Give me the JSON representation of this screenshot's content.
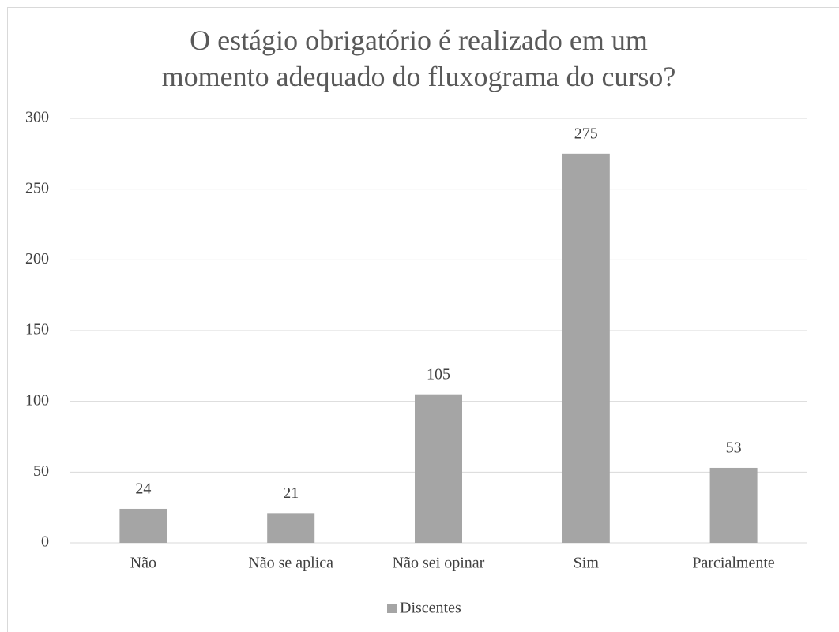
{
  "chart_data": {
    "type": "bar",
    "title": "O estágio obrigatório é realizado em um momento adequado do fluxograma do curso?",
    "categories": [
      "Não",
      "Não se aplica",
      "Não sei opinar",
      "Sim",
      "Parcialmente"
    ],
    "series": [
      {
        "name": "Discentes",
        "color": "#a5a5a5",
        "values": [
          24,
          21,
          105,
          275,
          53
        ]
      }
    ],
    "ylim": [
      0,
      300
    ],
    "yticks": [
      0,
      50,
      100,
      150,
      200,
      250,
      300
    ],
    "grid": true,
    "legend": "bottom"
  }
}
